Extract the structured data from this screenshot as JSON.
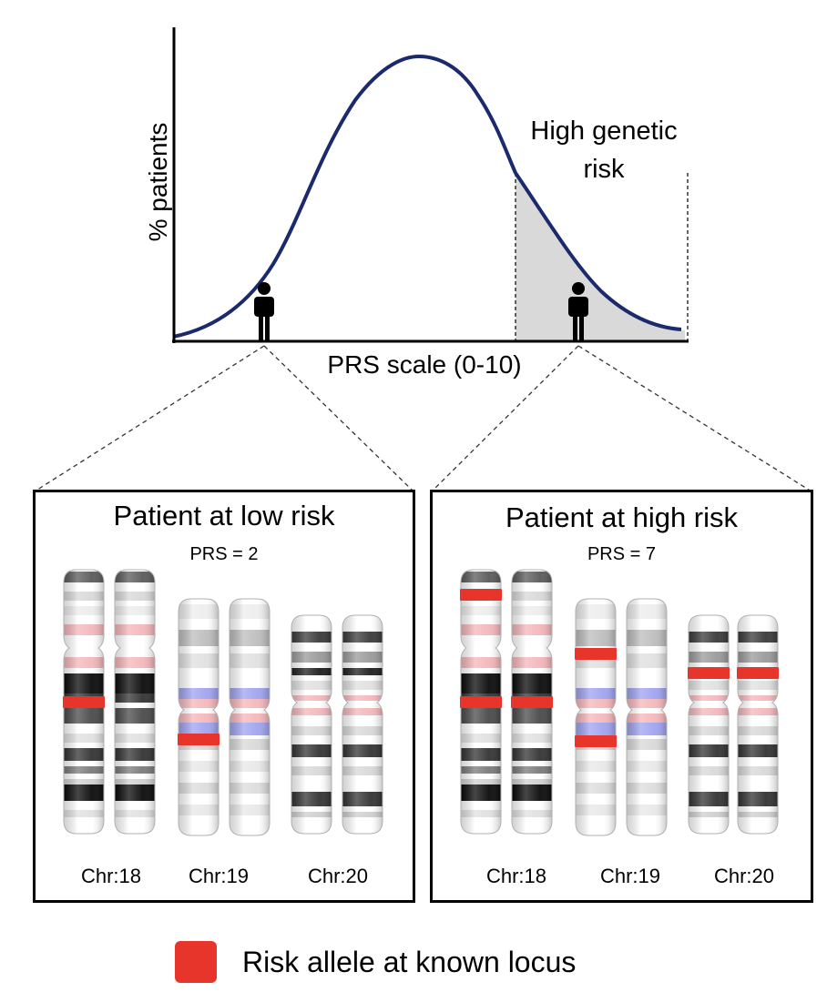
{
  "curve": {
    "y_label": "% patients",
    "x_label": "PRS scale (0-10)",
    "annotation_line1": "High genetic",
    "annotation_line2": "risk",
    "colors": {
      "curve": "#1a2a6c",
      "shade": "#d9d9d9",
      "axis": "#000000"
    }
  },
  "panels": [
    {
      "title": "Patient at low risk",
      "prs_text": "PRS = 2",
      "chromosomes": [
        "Chr:18",
        "Chr:19",
        "Chr:20"
      ]
    },
    {
      "title": "Patient at high risk",
      "prs_text": "PRS = 7",
      "chromosomes": [
        "Chr:18",
        "Chr:19",
        "Chr:20"
      ]
    }
  ],
  "legend": {
    "label": "Risk allele at known locus",
    "color": "#e8352b"
  },
  "colors": {
    "risk_allele": "#e8352b",
    "centromere": "#f4b6ba",
    "blue_band": "#9fa3ef"
  }
}
